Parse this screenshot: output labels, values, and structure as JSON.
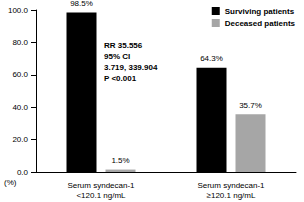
{
  "chart_data": {
    "type": "bar",
    "categories": [
      "Serum syndecan-1\n<120.1 ng/mL",
      "Serum syndecan-1\n≥120.1 ng/mL"
    ],
    "series": [
      {
        "name": "Surviving patients",
        "color": "#000000",
        "values": [
          98.5,
          64.3
        ],
        "value_labels": [
          "98.5%",
          "64.3%"
        ]
      },
      {
        "name": "Deceased patients",
        "color": "#a6a6a6",
        "values": [
          1.5,
          35.7
        ],
        "value_labels": [
          "1.5%",
          "35.7%"
        ]
      }
    ],
    "ylabel": "(%)",
    "annotations": [
      "RR 35.556",
      "95% CI",
      "3.719, 339.904",
      "P <0.001"
    ],
    "ylim": [
      0,
      100
    ],
    "yticks": [
      {
        "value": 0,
        "label": "0.0"
      },
      {
        "value": 20,
        "label": "20.0"
      },
      {
        "value": 40,
        "label": "40.0"
      },
      {
        "value": 60,
        "label": "60.0"
      },
      {
        "value": 80,
        "label": "80.0"
      },
      {
        "value": 100,
        "label": "100.0"
      }
    ],
    "grid": false,
    "legend": "upper right",
    "data_labels": true
  }
}
